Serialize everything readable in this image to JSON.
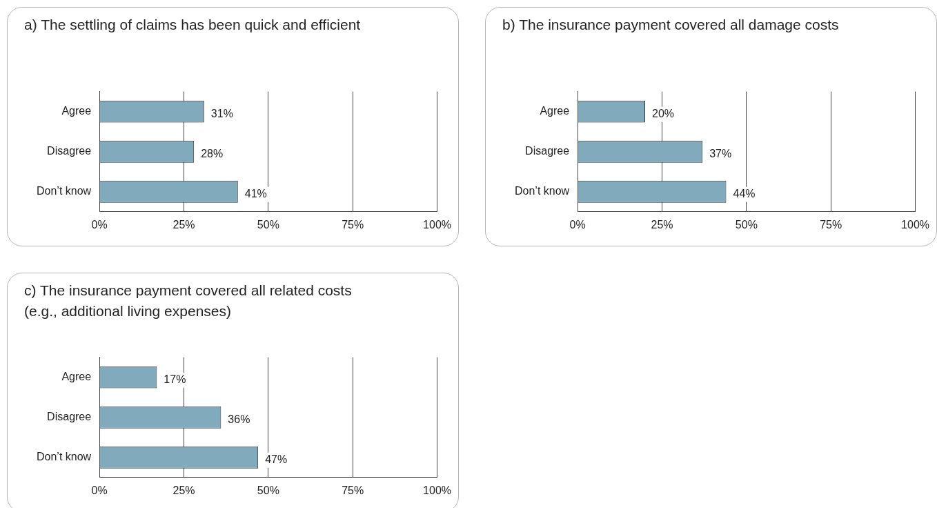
{
  "chart_data": [
    {
      "type": "bar",
      "orientation": "horizontal",
      "title": "a) The settling of claims has been quick and efficient",
      "categories": [
        "Agree",
        "Disagree",
        "Don’t know"
      ],
      "values": [
        31,
        28,
        41
      ],
      "value_labels": [
        "31%",
        "28%",
        "41%"
      ],
      "color": "#82aabd",
      "xlim": [
        0,
        100
      ],
      "xticks": [
        {
          "value": 0,
          "label": "0%"
        },
        {
          "value": 25,
          "label": "25%"
        },
        {
          "value": 50,
          "label": "50%"
        },
        {
          "value": 75,
          "label": "75%"
        },
        {
          "value": 100,
          "label": "100%"
        }
      ],
      "grid": "x"
    },
    {
      "type": "bar",
      "orientation": "horizontal",
      "title": "b) The insurance payment covered all damage costs",
      "categories": [
        "Agree",
        "Disagree",
        "Don’t know"
      ],
      "values": [
        20,
        37,
        44
      ],
      "value_labels": [
        "20%",
        "37%",
        "44%"
      ],
      "color": "#82aabd",
      "xlim": [
        0,
        100
      ],
      "xticks": [
        {
          "value": 0,
          "label": "0%"
        },
        {
          "value": 25,
          "label": "25%"
        },
        {
          "value": 50,
          "label": "50%"
        },
        {
          "value": 75,
          "label": "75%"
        },
        {
          "value": 100,
          "label": "100%"
        }
      ],
      "grid": "x"
    },
    {
      "type": "bar",
      "orientation": "horizontal",
      "title": "c) The insurance payment covered all related costs\n(e.g., additional living expenses)",
      "categories": [
        "Agree",
        "Disagree",
        "Don’t know"
      ],
      "values": [
        17,
        36,
        47
      ],
      "value_labels": [
        "17%",
        "36%",
        "47%"
      ],
      "color": "#82aabd",
      "xlim": [
        0,
        100
      ],
      "xticks": [
        {
          "value": 0,
          "label": "0%"
        },
        {
          "value": 25,
          "label": "25%"
        },
        {
          "value": 50,
          "label": "50%"
        },
        {
          "value": 75,
          "label": "75%"
        },
        {
          "value": 100,
          "label": "100%"
        }
      ],
      "grid": "x"
    }
  ]
}
